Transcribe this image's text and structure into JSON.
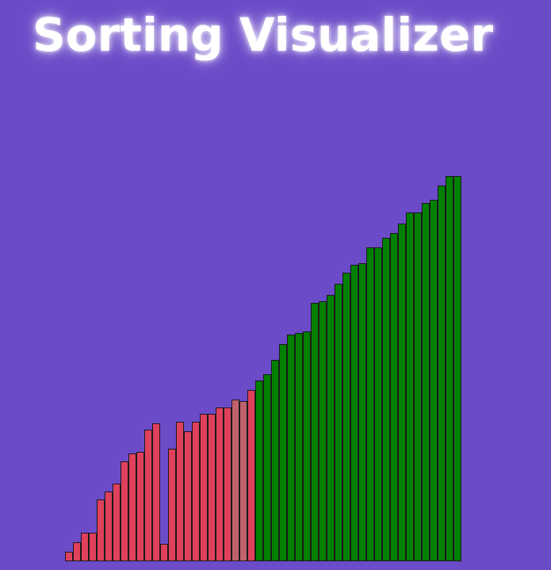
{
  "header": {
    "title": "Sorting Visualizer"
  },
  "colors": {
    "background": "#6c4bc9",
    "unsorted": "#e0405c",
    "comparing": "#c0626e",
    "sorted": "#008000",
    "border": "#1a1a1a"
  },
  "visualizer": {
    "values": [
      12,
      24,
      36,
      36,
      78,
      88,
      98,
      126,
      136,
      138,
      166,
      174,
      22,
      142,
      176,
      164,
      176,
      186,
      186,
      194,
      194,
      204,
      202,
      216,
      228,
      236,
      254,
      274,
      286,
      288,
      290,
      326,
      328,
      336,
      350,
      364,
      374,
      376,
      396,
      396,
      408,
      414,
      426,
      440,
      440,
      452,
      456,
      474,
      486,
      486
    ],
    "states": [
      "u",
      "u",
      "u",
      "u",
      "u",
      "u",
      "u",
      "u",
      "u",
      "u",
      "u",
      "u",
      "u",
      "u",
      "u",
      "u",
      "u",
      "u",
      "u",
      "u",
      "u",
      "c",
      "c",
      "u",
      "s",
      "s",
      "s",
      "s",
      "s",
      "s",
      "s",
      "s",
      "s",
      "s",
      "s",
      "s",
      "s",
      "s",
      "s",
      "s",
      "s",
      "s",
      "s",
      "s",
      "s",
      "s",
      "s",
      "s",
      "s",
      "s"
    ]
  }
}
